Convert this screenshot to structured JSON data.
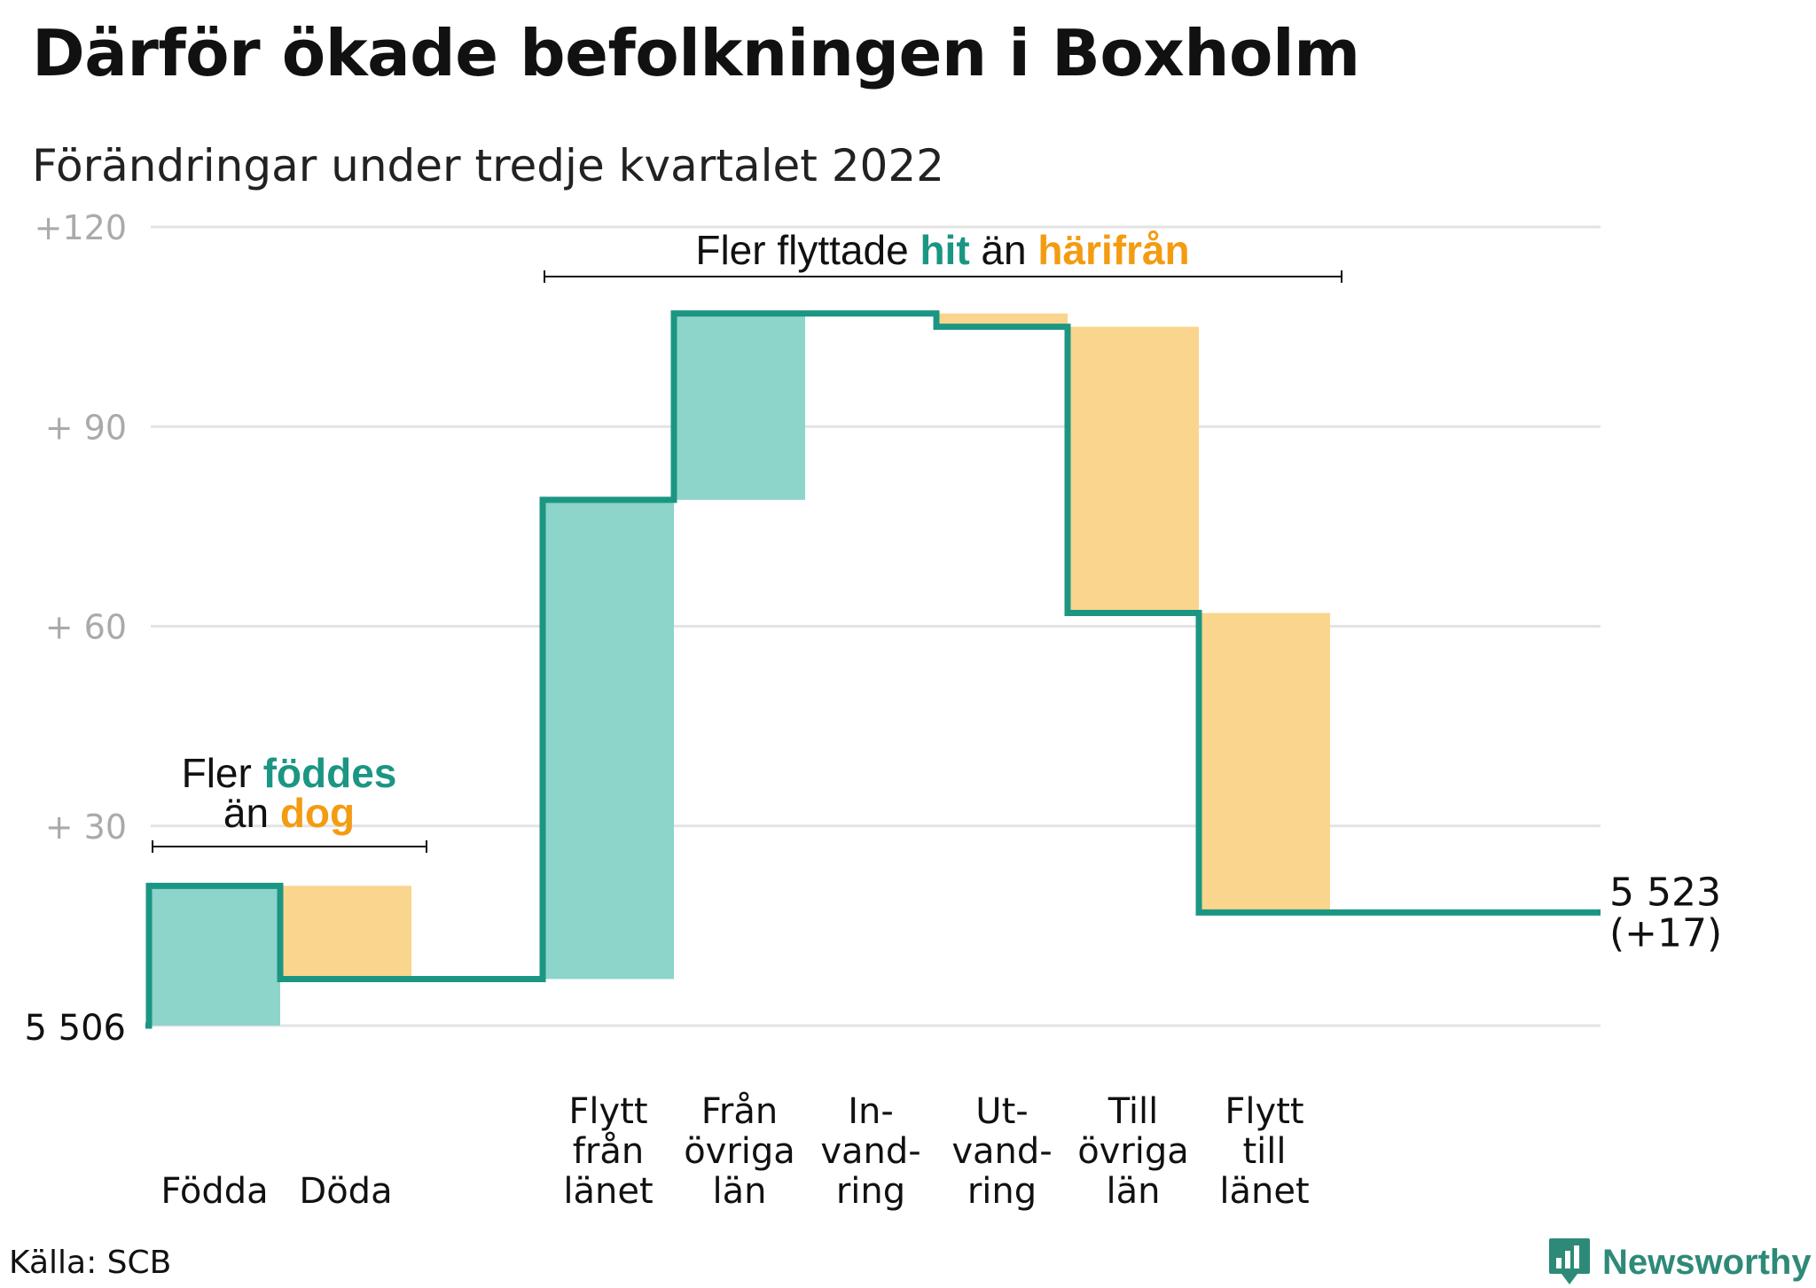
{
  "title": "Därför ökade befolkningen i Boxholm",
  "subtitle": "Förändringar under tredje kvartalet 2022",
  "source": "Källa: SCB",
  "brand": {
    "name": "Newsworthy",
    "icon": "newsworthy-logo-icon"
  },
  "colors": {
    "increase_fill": "#8dd4cb",
    "decrease_fill": "#fad58e",
    "step_line": "#1b9683",
    "accent_teal": "#1b9683",
    "accent_orange": "#f39c12",
    "grid": "#e3e3e3",
    "tick": "#aaaaaa"
  },
  "chart_data": {
    "type": "waterfall",
    "start_label": "5 506",
    "end_label_value": "5 523",
    "end_label_change": "(+17)",
    "ylim": [
      0,
      120
    ],
    "y_ticks": [
      {
        "value": 120,
        "label": "+120"
      },
      {
        "value": 90,
        "label": "+ 90"
      },
      {
        "value": 60,
        "label": "+ 60"
      },
      {
        "value": 30,
        "label": "+ 30"
      }
    ],
    "bars": [
      {
        "label_lines": [
          "Födda"
        ],
        "start": 0,
        "end": 21,
        "kind": "increase"
      },
      {
        "label_lines": [
          "Döda"
        ],
        "start": 21,
        "end": 7,
        "kind": "decrease"
      },
      {
        "label_lines": [],
        "start": 7,
        "end": 7,
        "kind": "none"
      },
      {
        "label_lines": [
          "Flytt",
          "från",
          "länet"
        ],
        "start": 7,
        "end": 79,
        "kind": "increase"
      },
      {
        "label_lines": [
          "Från",
          "övriga",
          "län"
        ],
        "start": 79,
        "end": 107,
        "kind": "increase"
      },
      {
        "label_lines": [
          "In-",
          "vand-",
          "ring"
        ],
        "start": 107,
        "end": 107,
        "kind": "increase"
      },
      {
        "label_lines": [
          "Ut-",
          "vand-",
          "ring"
        ],
        "start": 107,
        "end": 105,
        "kind": "decrease"
      },
      {
        "label_lines": [
          "Till",
          "övriga",
          "län"
        ],
        "start": 105,
        "end": 62,
        "kind": "decrease"
      },
      {
        "label_lines": [
          "Flytt",
          "till",
          "länet"
        ],
        "start": 62,
        "end": 17,
        "kind": "decrease"
      },
      {
        "label_lines": [],
        "start": 17,
        "end": 17,
        "kind": "none"
      }
    ],
    "final_value": 17,
    "annotations": [
      {
        "parts": [
          {
            "text": "Fler ",
            "style": "plain"
          },
          {
            "text": "flyttade ",
            "style": "plain"
          },
          {
            "text": "hit",
            "style": "teal"
          },
          {
            "text": " än ",
            "style": "plain"
          },
          {
            "text": "härifrån",
            "style": "orange"
          }
        ]
      },
      {
        "line1": [
          {
            "text": "Fler ",
            "style": "plain"
          },
          {
            "text": "föddes",
            "style": "teal"
          }
        ],
        "line2": [
          {
            "text": "än ",
            "style": "plain"
          },
          {
            "text": "dog",
            "style": "orange"
          }
        ]
      }
    ]
  }
}
